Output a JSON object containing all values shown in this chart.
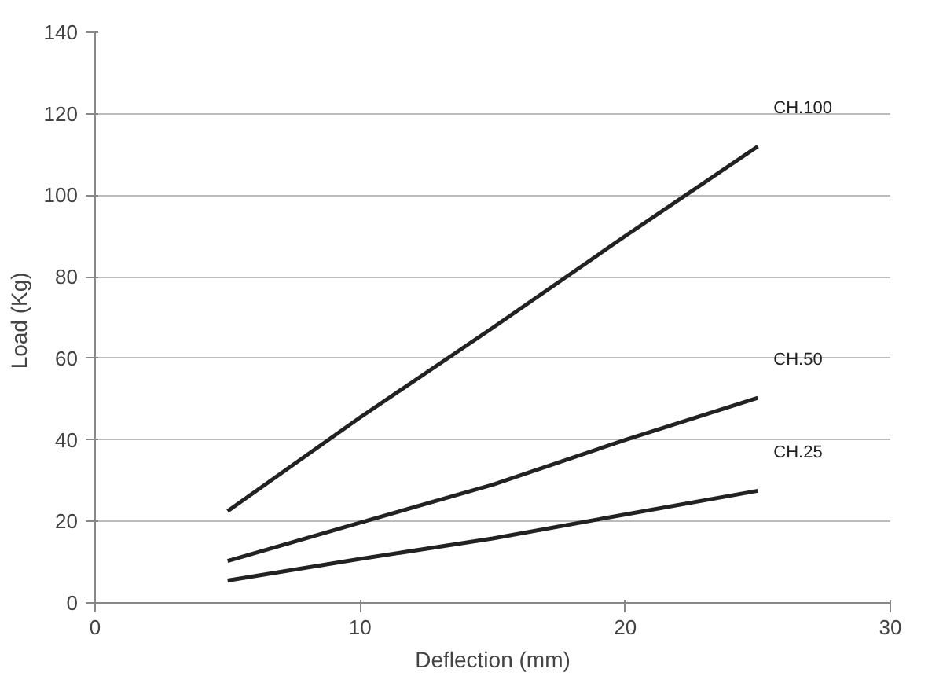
{
  "chart_data": {
    "type": "line",
    "xlabel": "Deflection (mm)",
    "ylabel": "Load  (Kg)",
    "x": [
      5,
      10,
      15,
      20,
      25
    ],
    "series": [
      {
        "name": "CH.100",
        "color": "#222222",
        "values": [
          22.5,
          45.5,
          67.5,
          90,
          112
        ]
      },
      {
        "name": "CH.50",
        "color": "#222222",
        "values": [
          10.3,
          19.7,
          29,
          40,
          50.3
        ]
      },
      {
        "name": "CH.25",
        "color": "#222222",
        "values": [
          5.5,
          10.8,
          15.8,
          21.7,
          27.5
        ]
      }
    ],
    "xlim": [
      0,
      30
    ],
    "xticks": [
      0,
      10,
      20,
      30
    ],
    "ylim": [
      0,
      140
    ],
    "yticks": [
      0,
      20,
      40,
      60,
      80,
      100,
      120,
      140
    ],
    "grid": "y",
    "marker": "none",
    "line_style": "solid"
  }
}
